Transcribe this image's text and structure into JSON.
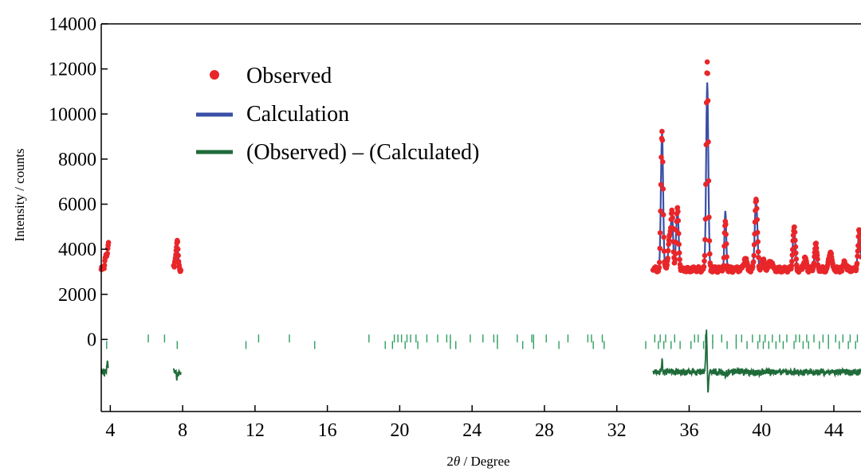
{
  "chart_data": {
    "type": "scatter",
    "title": "",
    "xlabel_prefix": "2",
    "xlabel_symbol": "θ",
    "xlabel_suffix": " / Degree",
    "ylabel": "Intensity / counts",
    "xlim": [
      3.5,
      45.5
    ],
    "ylim": [
      -3200,
      14000
    ],
    "x_ticks": [
      4,
      8,
      12,
      16,
      20,
      24,
      28,
      32,
      36,
      40,
      44
    ],
    "y_ticks": [
      0,
      2000,
      4000,
      6000,
      8000,
      10000,
      12000,
      14000
    ],
    "grid": false,
    "legend_position": "top-left",
    "colors": {
      "observed": "#e8262a",
      "calculated": "#3a4fa6",
      "difference": "#1f6b3a",
      "reflection_markers": "#2e9e5e"
    },
    "series": [
      {
        "name": "Observed",
        "style": "markers",
        "color": "#e8262a",
        "segments": [
          [
            3.5,
            3.9
          ],
          [
            7.5,
            7.9
          ],
          [
            34.0,
            45.5
          ]
        ],
        "background": 3100,
        "peaks": [
          [
            3.75,
            650,
            0.05
          ],
          [
            3.9,
            1100,
            0.05
          ],
          [
            7.7,
            1200,
            0.05
          ],
          [
            7.6,
            450,
            0.05
          ],
          [
            34.5,
            6100,
            0.06
          ],
          [
            34.9,
            1400,
            0.06
          ],
          [
            35.05,
            2500,
            0.06
          ],
          [
            35.35,
            2700,
            0.07
          ],
          [
            37.0,
            9300,
            0.06
          ],
          [
            38.0,
            2100,
            0.05
          ],
          [
            39.1,
            500,
            0.08
          ],
          [
            39.7,
            3150,
            0.07
          ],
          [
            40.1,
            400,
            0.08
          ],
          [
            40.5,
            400,
            0.08
          ],
          [
            41.8,
            1850,
            0.07
          ],
          [
            42.4,
            500,
            0.07
          ],
          [
            43.0,
            1100,
            0.07
          ],
          [
            43.8,
            800,
            0.08
          ],
          [
            44.6,
            300,
            0.08
          ],
          [
            45.4,
            1700,
            0.07
          ]
        ]
      },
      {
        "name": "Calculation",
        "style": "line",
        "color": "#3a4fa6",
        "override_peaks": [
          [
            37.0,
            8300
          ],
          [
            38.0,
            2600
          ]
        ]
      },
      {
        "name": "(Observed) – (Calculated)",
        "style": "line",
        "color": "#1f6b3a",
        "baseline": -1450,
        "spikes": [
          [
            3.85,
            500
          ],
          [
            7.7,
            -300
          ],
          [
            34.5,
            500
          ],
          [
            36.95,
            1600
          ],
          [
            37.05,
            -1200
          ]
        ]
      }
    ],
    "reflections_row1_y": 40,
    "reflections_row2_y": -250,
    "reflections_row1": [
      6.1,
      7.0,
      12.2,
      13.9,
      18.3,
      19.7,
      19.9,
      20.1,
      20.4,
      20.6,
      20.9,
      21.5,
      22.1,
      22.6,
      22.8,
      23.9,
      24.6,
      25.2,
      25.4,
      26.5,
      27.3,
      27.4,
      28.1,
      29.3,
      30.4,
      30.6,
      31.2,
      34.1,
      34.4,
      34.7,
      35.2,
      36.3,
      36.5,
      36.9,
      37.3,
      37.8,
      38.6,
      38.9,
      39.5,
      39.9,
      40.2,
      40.6,
      41.0,
      41.4,
      41.9,
      42.1,
      42.5,
      42.9,
      43.4,
      43.7,
      44.1,
      44.5,
      44.9,
      45.3
    ],
    "reflections_row2": [
      3.8,
      7.7,
      11.5,
      15.3,
      19.2,
      19.6,
      20.3,
      21.0,
      22.8,
      23.1,
      25.4,
      26.8,
      27.4,
      28.8,
      30.7,
      31.3,
      33.6,
      34.3,
      34.6,
      35.0,
      35.5,
      36.1,
      36.8,
      37.3,
      38.1,
      38.6,
      39.2,
      39.8,
      40.1,
      40.4,
      40.8,
      41.2,
      41.8,
      42.3,
      42.6,
      43.2,
      43.7,
      44.3,
      44.8,
      45.2
    ]
  }
}
